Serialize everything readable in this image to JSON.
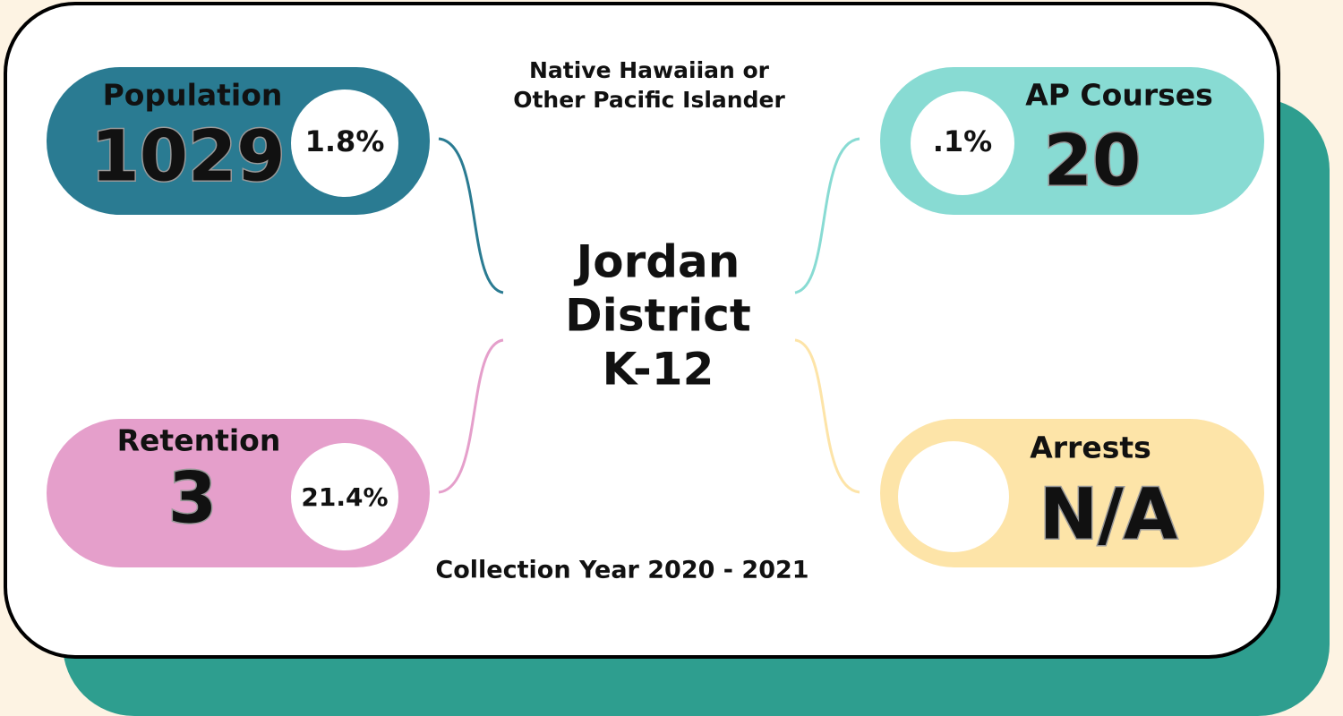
{
  "header": {
    "lines": [
      "Native Hawaiian or",
      "Other Pacific Islander"
    ]
  },
  "title": {
    "lines": [
      "Jordan",
      "District",
      "K-12"
    ]
  },
  "footer": "Collection Year 2020 - 2021",
  "cards": [
    {
      "label": "Population",
      "value": "1029",
      "percent": "1.8%"
    },
    {
      "label": "AP Courses",
      "value": "20",
      "percent": ".1%"
    },
    {
      "label": "Retention",
      "value": "3",
      "percent": "21.4%"
    },
    {
      "label": "Arrests",
      "value": "N/A"
    }
  ]
}
